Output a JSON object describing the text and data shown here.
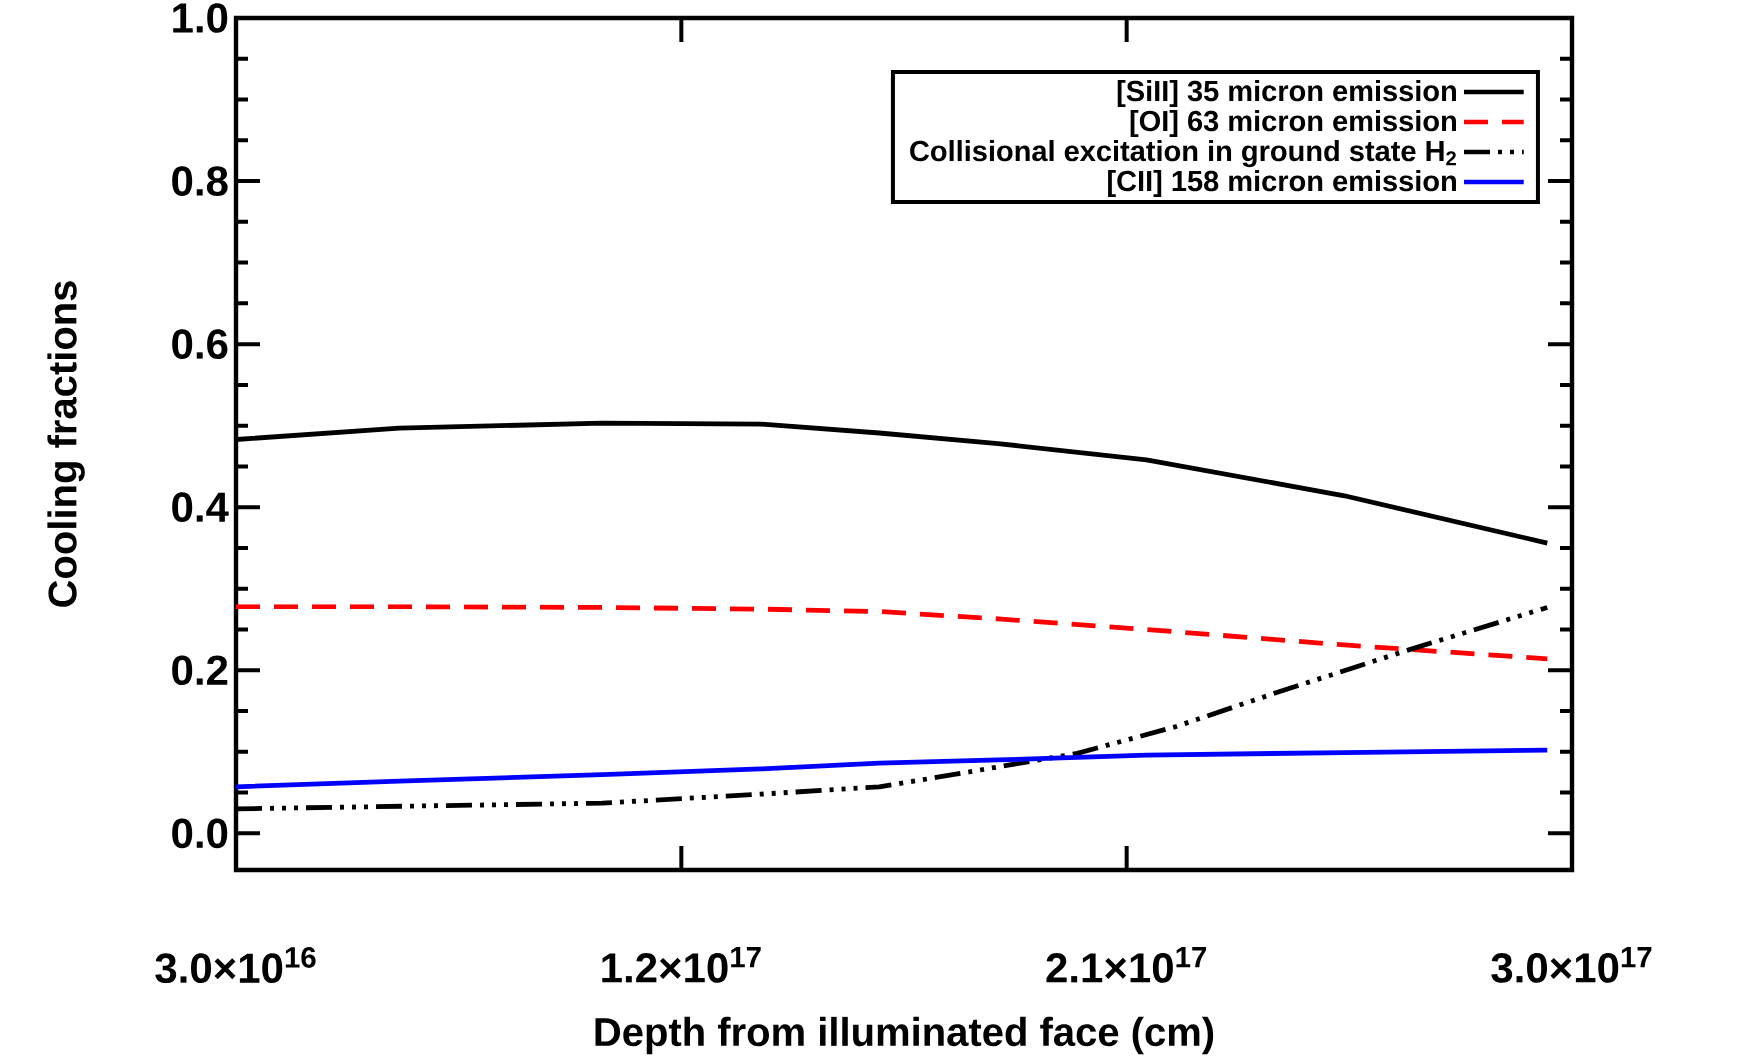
{
  "chart_data": {
    "type": "line",
    "xlabel": "Depth from illuminated face (cm)",
    "ylabel": "Cooling fractions",
    "x": [
      3e+16,
      6.3e+16,
      1.04e+17,
      1.36e+17,
      1.6e+17,
      1.84e+17,
      2.14e+17,
      2.54e+17,
      2.95e+17
    ],
    "series": [
      {
        "name": "[SiII] 35 micron emission",
        "color": "#000000",
        "line_style": "solid",
        "values": [
          0.483,
          0.497,
          0.503,
          0.502,
          0.491,
          0.478,
          0.458,
          0.414,
          0.356
        ]
      },
      {
        "name": "[OI] 63 micron emission",
        "color": "#ff0000",
        "line_style": "dashed",
        "values": [
          0.278,
          0.278,
          0.277,
          0.275,
          0.272,
          0.263,
          0.25,
          0.231,
          0.214
        ]
      },
      {
        "name": "Collisional excitation in ground state H$_{2}$",
        "color": "#000000",
        "line_style": "dashdotdotted",
        "x": [
          3e+16,
          1.04e+17,
          1.36e+17,
          1.6e+17,
          1.73e+17,
          2e+17,
          2.2e+17,
          2.4e+17,
          2.67e+17,
          2.95e+17
        ],
        "values": [
          0.03,
          0.037,
          0.048,
          0.057,
          0.07,
          0.098,
          0.131,
          0.172,
          0.225,
          0.277
        ]
      },
      {
        "name": "[CII] 158 micron emission",
        "color": "#0000ff",
        "line_style": "solid",
        "values": [
          0.057,
          0.064,
          0.072,
          0.079,
          0.086,
          0.09,
          0.096,
          0.099,
          0.102
        ]
      }
    ],
    "xlim": [
      3e+16,
      3e+17
    ],
    "xticks": [
      {
        "value": 3e+16,
        "label": "3.0×10$^{16}$"
      },
      {
        "value": 1.2e+17,
        "label": "1.2×10$^{17}$"
      },
      {
        "value": 2.1e+17,
        "label": "2.1×10$^{17}$"
      },
      {
        "value": 3e+17,
        "label": "3.0×10$^{17}$"
      }
    ],
    "ylim": [
      -0.045,
      1.0
    ],
    "yticks": [
      {
        "value": 0.0,
        "label": "0.0"
      },
      0.2,
      0.4,
      0.6,
      0.8,
      {
        "value": 1.0,
        "label": "1.0"
      }
    ],
    "legend": "top right",
    "grid": false
  }
}
